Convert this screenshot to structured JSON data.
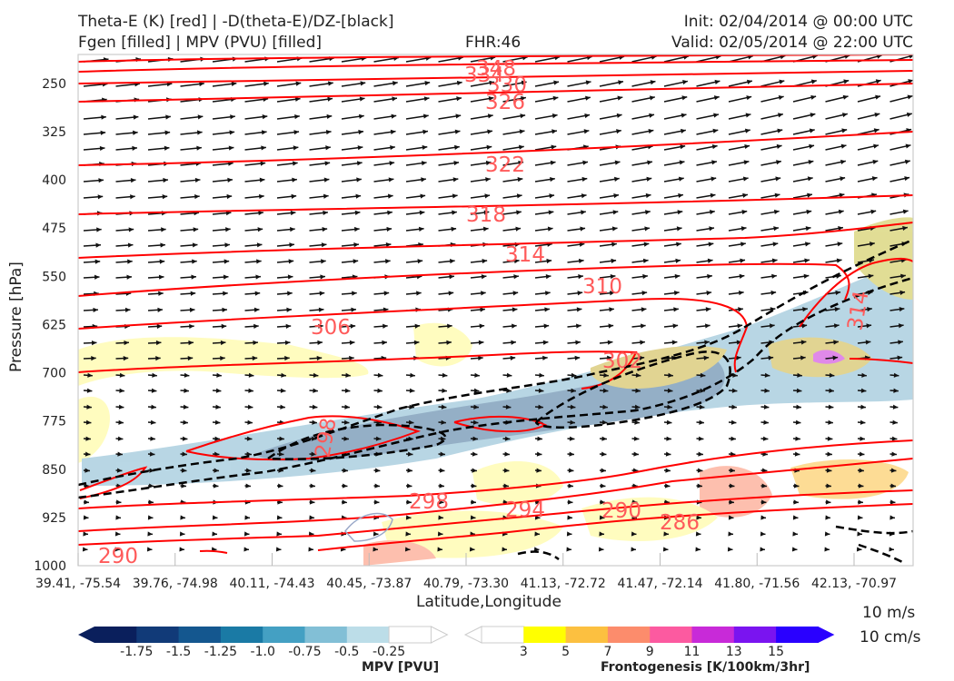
{
  "header": {
    "title_line1": "Theta-E (K) [red] | -D(theta-E)/DZ-[black]",
    "title_line2": "Fgen [filled] | MPV (PVU) [filled]",
    "fhr": "FHR:46",
    "init": "Init: 02/04/2014 @ 00:00 UTC",
    "valid": "Valid: 02/05/2014 @ 22:00 UTC"
  },
  "chart_data": {
    "type": "cross-section",
    "ylabel": "Pressure [hPa]",
    "xlabel": "Latitude,Longitude",
    "y_ticks": [
      250,
      325,
      400,
      475,
      550,
      625,
      700,
      775,
      850,
      925,
      1000
    ],
    "ylim": [
      1000,
      205
    ],
    "x_ticks": [
      "39.41, -75.54",
      "39.76, -74.98",
      "40.11, -74.43",
      "40.45, -73.87",
      "40.79, -73.30",
      "41.13, -72.72",
      "41.47, -72.14",
      "41.80, -71.56",
      "42.13, -70.97"
    ],
    "theta_e_contour_labels": [
      348,
      334,
      330,
      326,
      322,
      318,
      314,
      310,
      306,
      302,
      298,
      298,
      294,
      290,
      290,
      286,
      314
    ],
    "theta_e_colors": {
      "contour": "#ff0000",
      "label": "#ff5a5a",
      "stability": "#000000"
    },
    "wind_reference": {
      "label1": "10 m/s",
      "label2": "10 cm/s"
    },
    "mpv_colorbar": {
      "label": "MPV [PVU]",
      "ticks": [
        "-1.75",
        "-1.5",
        "-1.25",
        "-1.0",
        "-0.75",
        "-0.5",
        "-0.25"
      ],
      "colors": [
        "#0a1f5c",
        "#113a78",
        "#14578f",
        "#1a7aa5",
        "#44a0c3",
        "#82bfd6",
        "#bcdde8",
        "#ffffff"
      ]
    },
    "fgen_colorbar": {
      "label": "Frontogenesis [K/100km/3hr]",
      "ticks": [
        "3",
        "5",
        "7",
        "9",
        "11",
        "13",
        "15"
      ],
      "colors": [
        "#ffffff",
        "#ffff00",
        "#fcc040",
        "#fc8c6c",
        "#fc5aa0",
        "#c82ad8",
        "#7a14f0",
        "#2a00ff"
      ]
    }
  }
}
